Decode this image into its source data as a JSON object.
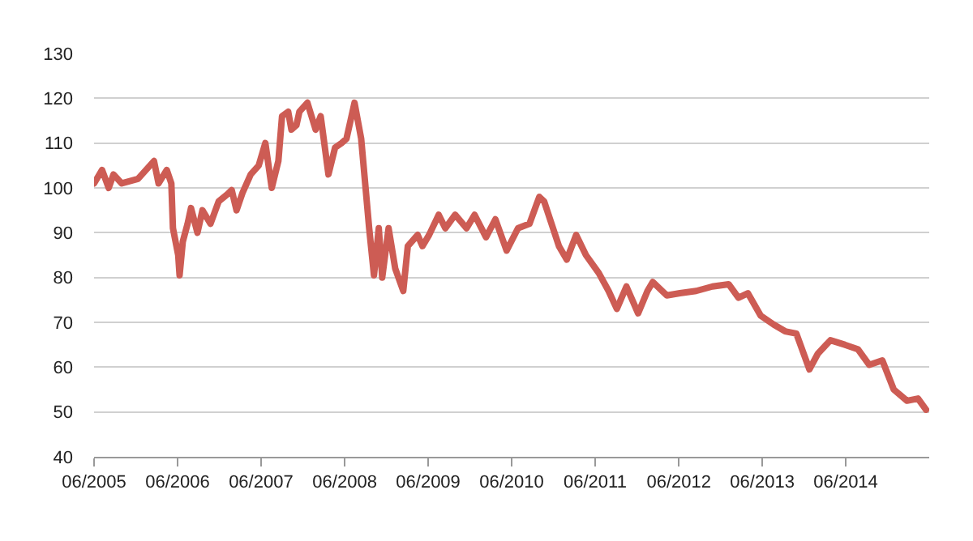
{
  "chart_data": {
    "type": "line",
    "grid": "y",
    "marker": "none",
    "line_style": "solid",
    "xlim": [
      "2005-06-01",
      "2015-06-01"
    ],
    "xticks": [
      {
        "value": "2005-06-01",
        "label": "06/2005"
      },
      {
        "value": "2006-06-01",
        "label": "06/2006"
      },
      {
        "value": "2007-06-01",
        "label": "06/2007"
      },
      {
        "value": "2008-06-01",
        "label": "06/2008"
      },
      {
        "value": "2009-06-01",
        "label": "06/2009"
      },
      {
        "value": "2010-06-01",
        "label": "06/2010"
      },
      {
        "value": "2011-06-01",
        "label": "06/2011"
      },
      {
        "value": "2012-06-01",
        "label": "06/2012"
      },
      {
        "value": "2013-06-01",
        "label": "06/2013"
      },
      {
        "value": "2014-06-01",
        "label": "06/2014"
      }
    ],
    "ylim": [
      40,
      130
    ],
    "yticks": [
      40,
      50,
      60,
      70,
      80,
      90,
      100,
      110,
      120,
      130
    ],
    "x": [
      "2005-06-01",
      "2005-07-06",
      "2005-08-04",
      "2005-08-25",
      "2005-09-30",
      "2005-12-10",
      "2006-02-18",
      "2006-03-10",
      "2006-04-15",
      "2006-05-05",
      "2006-05-12",
      "2006-06-04",
      "2006-06-10",
      "2006-06-24",
      "2006-07-15",
      "2006-07-30",
      "2006-08-27",
      "2006-09-18",
      "2006-10-23",
      "2006-11-28",
      "2007-01-03",
      "2007-01-24",
      "2007-02-14",
      "2007-03-13",
      "2007-04-17",
      "2007-05-22",
      "2007-06-20",
      "2007-07-18",
      "2007-08-16",
      "2007-09-01",
      "2007-09-28",
      "2007-10-12",
      "2007-11-03",
      "2007-11-16",
      "2007-12-21",
      "2008-01-26",
      "2008-02-17",
      "2008-03-22",
      "2008-04-20",
      "2008-05-18",
      "2008-06-09",
      "2008-07-14",
      "2008-08-12",
      "2008-09-16",
      "2008-10-07",
      "2008-10-28",
      "2008-11-12",
      "2008-12-10",
      "2009-01-08",
      "2009-02-12",
      "2009-03-04",
      "2009-04-16",
      "2009-05-07",
      "2009-06-05",
      "2009-07-17",
      "2009-08-15",
      "2009-09-27",
      "2009-11-16",
      "2009-12-21",
      "2010-02-09",
      "2010-03-22",
      "2010-05-10",
      "2010-06-29",
      "2010-08-18",
      "2010-09-30",
      "2010-10-21",
      "2010-12-25",
      "2011-01-28",
      "2011-03-10",
      "2011-04-22",
      "2011-06-17",
      "2011-07-30",
      "2011-09-04",
      "2011-10-16",
      "2011-12-06",
      "2012-01-16",
      "2012-02-08",
      "2012-04-10",
      "2012-06-06",
      "2012-08-16",
      "2012-10-26",
      "2013-01-05",
      "2013-02-17",
      "2013-03-30",
      "2013-05-25",
      "2013-07-21",
      "2013-09-09",
      "2013-10-28",
      "2013-12-24",
      "2014-01-30",
      "2014-03-26",
      "2014-05-28",
      "2014-07-24",
      "2014-09-12",
      "2014-11-08",
      "2014-12-28",
      "2015-02-24",
      "2015-04-13",
      "2015-05-18"
    ],
    "series": [
      {
        "color": "#cd5c54",
        "values": [
          101,
          104,
          100,
          103,
          101,
          102,
          106,
          101,
          104,
          101,
          91,
          85,
          80.5,
          88,
          92,
          95.5,
          90,
          95,
          92,
          97,
          98.5,
          99.5,
          95,
          99,
          103,
          105,
          110,
          100,
          106,
          116,
          117,
          113,
          114,
          117,
          119,
          113,
          116,
          103,
          109,
          110,
          111,
          119,
          111,
          91,
          80.5,
          91,
          80,
          91,
          82,
          77,
          87,
          89.5,
          87,
          89.5,
          94,
          91,
          94,
          91,
          94,
          89,
          93,
          86,
          91,
          92,
          98,
          97,
          87,
          84,
          89.5,
          85,
          81,
          77,
          73,
          78,
          72,
          77,
          79,
          76,
          76.5,
          77,
          78,
          78.5,
          75.5,
          76.5,
          71.5,
          69.5,
          68,
          67.5,
          59.5,
          63,
          66,
          65,
          64,
          60.5,
          61.5,
          55,
          52.5,
          53,
          50.5
        ]
      }
    ]
  }
}
